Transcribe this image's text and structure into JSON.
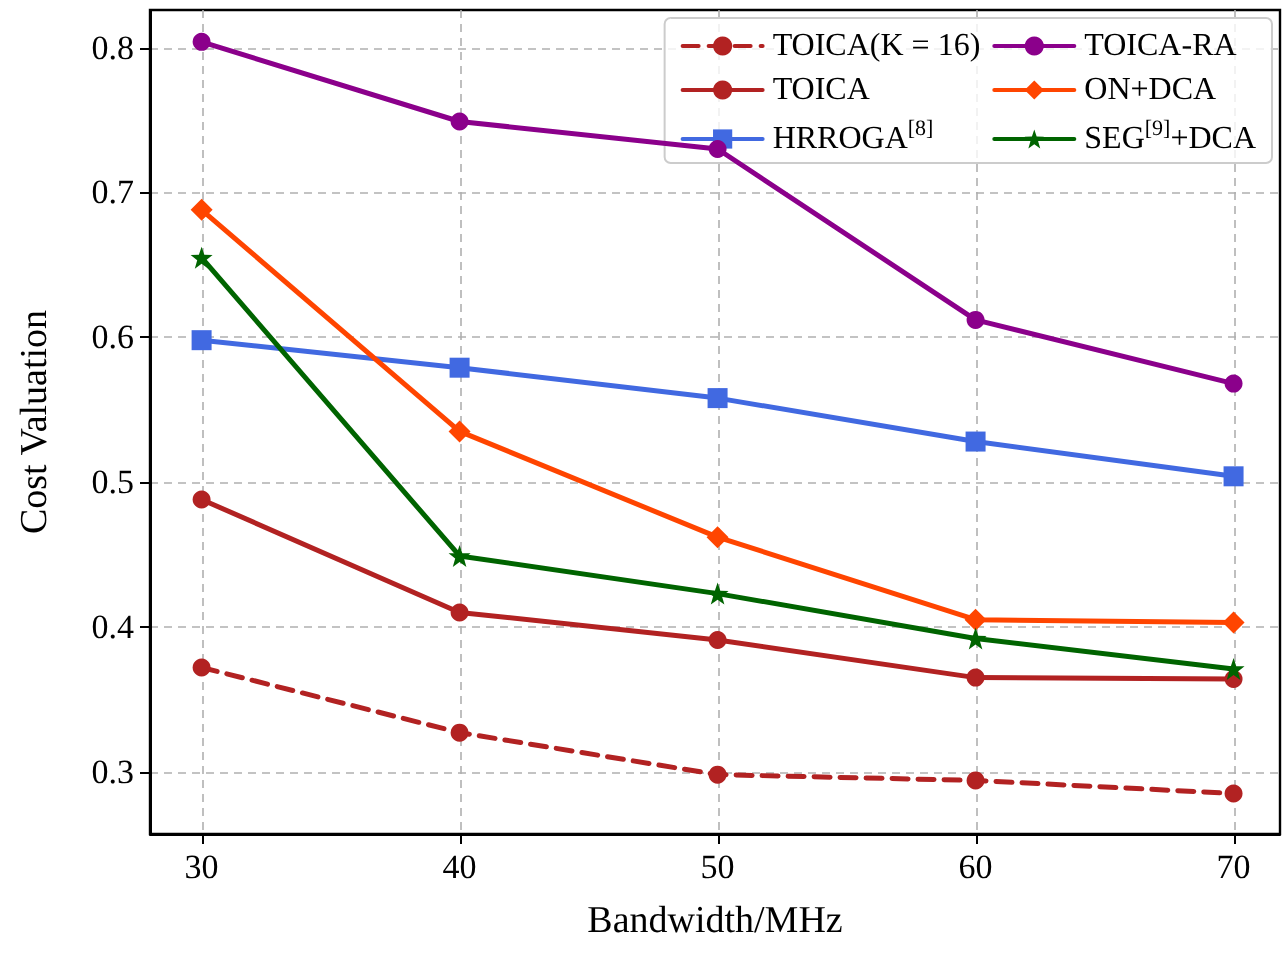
{
  "chart_data": {
    "type": "line",
    "xlabel": "Bandwidth/MHz",
    "ylabel": "Cost Valuation",
    "x": [
      30,
      40,
      50,
      60,
      70
    ],
    "xlim": [
      28,
      71.8
    ],
    "xticks": [
      30,
      40,
      50,
      60,
      70
    ],
    "ylim": [
      0.257,
      0.826
    ],
    "yticks": [
      0.3,
      0.4,
      0.5,
      0.6,
      0.7,
      0.8
    ],
    "grid": true,
    "legend": "top right",
    "series": [
      {
        "name": "TOICA(K = 16)",
        "color": "#b22222",
        "marker": "circle",
        "line_style": "dashed",
        "values": [
          0.372,
          0.327,
          0.298,
          0.294,
          0.285
        ]
      },
      {
        "name": "TOICA",
        "color": "#b22222",
        "marker": "circle",
        "line_style": "solid",
        "values": [
          0.488,
          0.41,
          0.391,
          0.365,
          0.364
        ]
      },
      {
        "name": "HRROGA$^{[8]}$",
        "color": "#4169e1",
        "marker": "square",
        "line_style": "solid",
        "values": [
          0.598,
          0.579,
          0.558,
          0.528,
          0.504
        ]
      },
      {
        "name": "TOICA-RA",
        "color": "#8b008b",
        "marker": "circle",
        "line_style": "solid",
        "values": [
          0.804,
          0.749,
          0.73,
          0.612,
          0.568
        ]
      },
      {
        "name": "ON+DCA",
        "color": "#ff4500",
        "marker": "diamond",
        "line_style": "solid",
        "values": [
          0.688,
          0.535,
          0.462,
          0.405,
          0.403
        ]
      },
      {
        "name": "SEG$^{[9]}$+DCA",
        "color": "#006400",
        "marker": "star",
        "line_style": "solid",
        "values": [
          0.655,
          0.449,
          0.423,
          0.392,
          0.371
        ]
      }
    ]
  }
}
